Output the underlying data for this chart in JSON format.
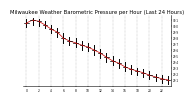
{
  "title": "Milwaukee Weather Barometric Pressure per Hour (Last 24 Hours)",
  "title_fontsize": 3.8,
  "bg_color": "#ffffff",
  "line_color": "#000000",
  "dot_color": "#cc0000",
  "grid_color": "#888888",
  "hours": [
    0,
    1,
    2,
    3,
    4,
    5,
    6,
    7,
    8,
    9,
    10,
    11,
    12,
    13,
    14,
    15,
    16,
    17,
    18,
    19,
    20,
    21,
    22,
    23
  ],
  "pressure_close": [
    30.05,
    30.1,
    30.08,
    30.02,
    29.95,
    29.9,
    29.8,
    29.75,
    29.72,
    29.68,
    29.65,
    29.6,
    29.55,
    29.48,
    29.42,
    29.38,
    29.32,
    29.28,
    29.25,
    29.22,
    29.18,
    29.15,
    29.12,
    29.1
  ],
  "pressure_high": [
    30.12,
    30.14,
    30.12,
    30.08,
    30.02,
    29.96,
    29.88,
    29.82,
    29.8,
    29.75,
    29.72,
    29.68,
    29.62,
    29.55,
    29.5,
    29.45,
    29.4,
    29.35,
    29.3,
    29.28,
    29.25,
    29.2,
    29.18,
    29.16
  ],
  "pressure_low": [
    29.98,
    30.02,
    30.0,
    29.96,
    29.88,
    29.82,
    29.72,
    29.68,
    29.65,
    29.6,
    29.58,
    29.52,
    29.46,
    29.4,
    29.35,
    29.3,
    29.25,
    29.2,
    29.18,
    29.15,
    29.12,
    29.08,
    29.05,
    29.04
  ],
  "ytick_labels": [
    "30.1",
    "30.0",
    "29.9",
    "29.8",
    "29.7",
    "29.6",
    "29.5",
    "29.4",
    "29.3",
    "29.2",
    "29.1"
  ],
  "ytick_values": [
    30.1,
    30.0,
    29.9,
    29.8,
    29.7,
    29.6,
    29.5,
    29.4,
    29.3,
    29.2,
    29.1
  ],
  "ylim": [
    29.0,
    30.18
  ],
  "xlim": [
    -0.5,
    23.5
  ],
  "xtick_positions": [
    0,
    2,
    4,
    6,
    8,
    10,
    12,
    14,
    16,
    18,
    20,
    22
  ],
  "xtick_labels": [
    "0",
    "2",
    "4",
    "6",
    "8",
    "10",
    "12",
    "14",
    "16",
    "18",
    "20",
    "22"
  ],
  "vgrid_positions": [
    0,
    2,
    4,
    6,
    8,
    10,
    12,
    14,
    16,
    18,
    20,
    22
  ]
}
